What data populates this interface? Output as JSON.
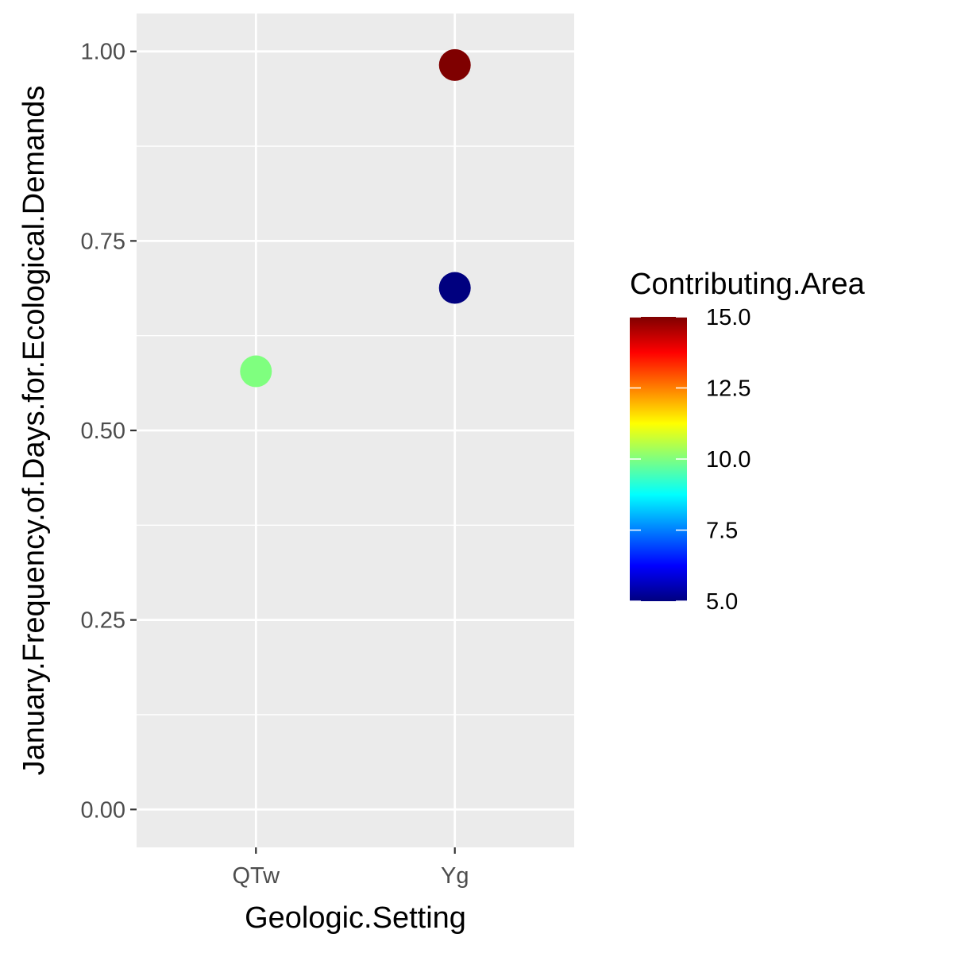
{
  "chart_data": {
    "type": "scatter",
    "xlabel": "Geologic.Setting",
    "ylabel": "January.Frequency.of.Days.for.Ecological.Demands",
    "categories": [
      "QTw",
      "Yg"
    ],
    "ylim": [
      -0.05,
      1.05
    ],
    "y_ticks": [
      0.0,
      0.25,
      0.5,
      0.75,
      1.0
    ],
    "y_tick_labels": [
      "0.00",
      "0.25",
      "0.50",
      "0.75",
      "1.00"
    ],
    "grid": true,
    "points": [
      {
        "x": "QTw",
        "y": 0.578,
        "color_value": 10.0
      },
      {
        "x": "Yg",
        "y": 0.688,
        "color_value": 5.0
      },
      {
        "x": "Yg",
        "y": 0.982,
        "color_value": 15.0
      }
    ],
    "legend": {
      "title": "Contributing.Area",
      "placement": "right",
      "range": [
        5.0,
        15.0
      ],
      "ticks": [
        5.0,
        7.5,
        10.0,
        12.5,
        15.0
      ],
      "tick_labels": [
        "5.0",
        "7.5",
        "10.0",
        "12.5",
        "15.0"
      ],
      "colors": [
        "#00007F",
        "#0000FF",
        "#007FFF",
        "#00FFFF",
        "#7FFF7F",
        "#FFFF00",
        "#FF7F00",
        "#FF0000",
        "#7F0000"
      ]
    },
    "panel_background": "#EBEBEB",
    "grid_color": "#FFFFFF"
  }
}
